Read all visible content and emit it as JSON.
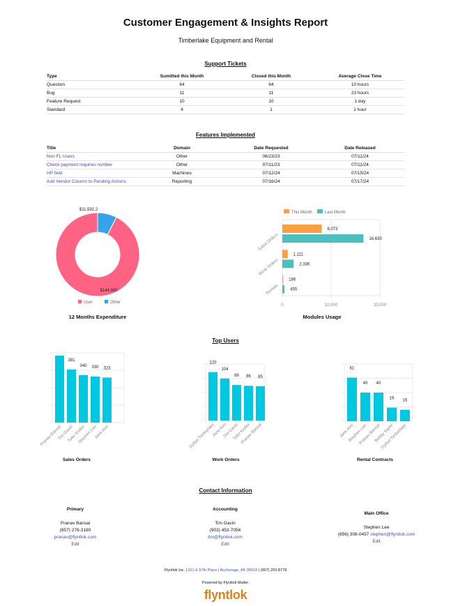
{
  "header": {
    "title": "Customer Engagement & Insights Report",
    "company": "Timberlake Equipment and Rental"
  },
  "support_tickets": {
    "title": "Support Tickets",
    "columns": [
      "Type",
      "Sumitted this Month",
      "Closed this Month",
      "Average Close Time"
    ],
    "rows": [
      [
        "Question",
        "64",
        "64",
        "10 hours"
      ],
      [
        "Bug",
        "11",
        "11",
        "23 hours"
      ],
      [
        "Feature Request",
        "10",
        "10",
        "1 day"
      ],
      [
        "Standard",
        "4",
        "1",
        "1 hour"
      ]
    ]
  },
  "features": {
    "title": "Features Implemented",
    "columns": [
      "Title",
      "Domain",
      "Date Requested",
      "Date Released"
    ],
    "rows": [
      [
        "Non FL Users",
        "Other",
        "06/23/23",
        "07/11/24"
      ],
      [
        "Check payment requires number",
        "Other",
        "07/11/23",
        "07/11/24"
      ],
      [
        "HP field",
        "Machines",
        "07/12/24",
        "07/15/24"
      ],
      [
        "Add Vendor Column to Pending Actions",
        "Reporting",
        "07/16/24",
        "07/17/24"
      ]
    ]
  },
  "chart_data": [
    {
      "type": "pie",
      "title": "12 Months Expenditure",
      "categories": [
        "User",
        "Other"
      ],
      "values": [
        144900,
        11592.2
      ],
      "labels": [
        "$144,900",
        "$11,592.2"
      ],
      "colors": [
        "#ff6384",
        "#36a2eb"
      ],
      "legend": "bottom"
    },
    {
      "type": "bar",
      "orientation": "horizontal",
      "title": "Modules Usage",
      "categories": [
        "Sales Orders",
        "Work Orders",
        "Rentals"
      ],
      "series": [
        {
          "name": "This Month",
          "values": [
            8073,
            1111,
            186
          ],
          "color": "#ff9f40"
        },
        {
          "name": "Last Month",
          "values": [
            16635,
            2336,
            455
          ],
          "color": "#4bc0c0"
        }
      ],
      "value_labels": [
        [
          "8,073",
          "1,111",
          "186"
        ],
        [
          "16,635",
          "2,336",
          "455"
        ]
      ],
      "xlim": [
        0,
        20000
      ],
      "xticks": [
        "0",
        "10,000",
        "20,000"
      ],
      "legend": "top"
    },
    {
      "type": "bar",
      "title": "Sales Orders",
      "categories": [
        "Pranav Bansal",
        "Tim Gavin",
        "Tyler Kistler",
        "Stephen Lee",
        "Jane Kim"
      ],
      "values": [
        480,
        381,
        340,
        330,
        323
      ],
      "ylim": [
        0,
        500
      ]
    },
    {
      "type": "bar",
      "title": "Work Orders",
      "categories": [
        "Dyllan Timberlake",
        "Jane Kim",
        "Tim Gavin",
        "Tyler Kistler",
        "Pranav Bansal"
      ],
      "values": [
        120,
        104,
        88,
        86,
        85
      ],
      "ylim": [
        0,
        140
      ]
    },
    {
      "type": "bar",
      "title": "Rental Contracts",
      "categories": [
        "Jane Kim",
        "Stephen Lee",
        "Pranav Bansal",
        "Bobby Sigmr",
        "Dyllan Timberlake"
      ],
      "values": [
        61,
        40,
        40,
        19,
        16
      ],
      "ylim": [
        0,
        80
      ]
    }
  ],
  "top_users_title": "Top Users",
  "contact": {
    "title": "Contact Information",
    "people": [
      {
        "role": "Primary",
        "name": "Pranav Bansal",
        "phone": "(857) 276-3180",
        "email": "pranav@flyntlok.com",
        "edit": "Edit"
      },
      {
        "role": "Accounting",
        "name": "Tim Gavin",
        "phone": "(903) 453-7054",
        "email": "tim@flyntlok.com",
        "edit": "Edit"
      },
      {
        "role": "Main Office",
        "name": "Stephen Lee",
        "phone": "(856) 308-0457",
        "email": "stephen@flyntlok.com",
        "edit": "Edit"
      }
    ]
  },
  "footer": {
    "company": "Flyntlok Inc.",
    "address": "621 E 57th Place | Anchorage, AK 99518",
    "phone": "(907) 202-8778",
    "powered": "Powered by Flyntlok Mailer.",
    "logo": "flyntlok"
  },
  "colors": {
    "bar": "#00c8e0",
    "link": "#3a55c0",
    "logo": "#d9821e"
  }
}
